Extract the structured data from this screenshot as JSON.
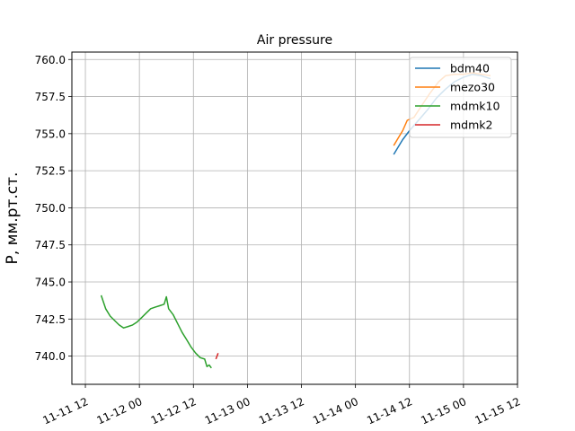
{
  "chart_data": {
    "type": "line",
    "title": "Air pressure",
    "xlabel": "",
    "ylabel": "P, мм.рт.ст.",
    "x_ticks": [
      "11-11 12",
      "11-12 00",
      "11-12 12",
      "11-13 00",
      "11-13 12",
      "11-14 00",
      "11-14 12",
      "11-15 00",
      "11-15 12"
    ],
    "y_ticks": [
      "740.0",
      "742.5",
      "745.0",
      "747.5",
      "750.0",
      "752.5",
      "755.0",
      "757.5",
      "760.0"
    ],
    "xlim": [
      "2023-11-11T09:00",
      "2023-11-15T12:00"
    ],
    "ylim": [
      738.1,
      760.5
    ],
    "grid": true,
    "legend_position": "top-right",
    "colors": {
      "bdm40": "#1f77b4",
      "mezo30": "#ff7f0e",
      "mdmk10": "#2ca02c",
      "mdmk2": "#d62728"
    },
    "series": [
      {
        "name": "bdm40",
        "color": "#1f77b4",
        "points": [
          [
            "2023-11-14T08:30",
            753.6
          ],
          [
            "2023-11-14T09:30",
            754.1
          ],
          [
            "2023-11-14T10:30",
            754.6
          ],
          [
            "2023-11-14T12:00",
            755.2
          ],
          [
            "2023-11-14T14:00",
            755.9
          ],
          [
            "2023-11-14T16:00",
            756.6
          ],
          [
            "2023-11-14T18:00",
            757.4
          ],
          [
            "2023-11-14T20:00",
            758.0
          ],
          [
            "2023-11-14T22:00",
            758.5
          ],
          [
            "2023-11-15T00:00",
            758.8
          ],
          [
            "2023-11-15T02:00",
            759.0
          ],
          [
            "2023-11-15T04:00",
            758.9
          ],
          [
            "2023-11-15T06:00",
            758.7
          ]
        ]
      },
      {
        "name": "mezo30",
        "color": "#ff7f0e",
        "points": [
          [
            "2023-11-14T08:30",
            754.2
          ],
          [
            "2023-11-14T09:30",
            754.7
          ],
          [
            "2023-11-14T10:30",
            755.2
          ],
          [
            "2023-11-14T11:30",
            755.9
          ],
          [
            "2023-11-14T13:00",
            756.1
          ],
          [
            "2023-11-14T14:30",
            756.8
          ],
          [
            "2023-11-14T16:30",
            757.7
          ],
          [
            "2023-11-14T18:30",
            758.5
          ],
          [
            "2023-11-14T20:00",
            758.9
          ],
          [
            "2023-11-14T22:00",
            759.0
          ],
          [
            "2023-11-15T00:00",
            759.0
          ],
          [
            "2023-11-15T02:00",
            759.1
          ],
          [
            "2023-11-15T04:00",
            759.0
          ],
          [
            "2023-11-15T06:00",
            758.9
          ]
        ]
      },
      {
        "name": "mdmk10",
        "color": "#2ca02c",
        "points": [
          [
            "2023-11-11T15:30",
            744.1
          ],
          [
            "2023-11-11T16:30",
            743.2
          ],
          [
            "2023-11-11T17:30",
            742.7
          ],
          [
            "2023-11-11T18:30",
            742.4
          ],
          [
            "2023-11-11T19:30",
            742.1
          ],
          [
            "2023-11-11T20:30",
            741.9
          ],
          [
            "2023-11-11T21:30",
            742.0
          ],
          [
            "2023-11-11T22:30",
            742.1
          ],
          [
            "2023-11-11T23:30",
            742.3
          ],
          [
            "2023-11-12T00:30",
            742.6
          ],
          [
            "2023-11-12T01:30",
            742.9
          ],
          [
            "2023-11-12T02:30",
            743.2
          ],
          [
            "2023-11-12T03:30",
            743.3
          ],
          [
            "2023-11-12T04:30",
            743.4
          ],
          [
            "2023-11-12T05:30",
            743.5
          ],
          [
            "2023-11-12T06:00",
            744.0
          ],
          [
            "2023-11-12T06:30",
            743.2
          ],
          [
            "2023-11-12T07:30",
            742.8
          ],
          [
            "2023-11-12T08:30",
            742.2
          ],
          [
            "2023-11-12T09:30",
            741.6
          ],
          [
            "2023-11-12T10:30",
            741.1
          ],
          [
            "2023-11-12T11:30",
            740.6
          ],
          [
            "2023-11-12T12:30",
            740.2
          ],
          [
            "2023-11-12T13:30",
            739.9
          ],
          [
            "2023-11-12T14:30",
            739.8
          ],
          [
            "2023-11-12T15:00",
            739.3
          ],
          [
            "2023-11-12T15:30",
            739.4
          ],
          [
            "2023-11-12T16:00",
            739.2
          ]
        ]
      },
      {
        "name": "mdmk2",
        "color": "#d62728",
        "points": [
          [
            "2023-11-12T17:00",
            739.8
          ],
          [
            "2023-11-12T17:30",
            740.2
          ]
        ]
      }
    ]
  }
}
